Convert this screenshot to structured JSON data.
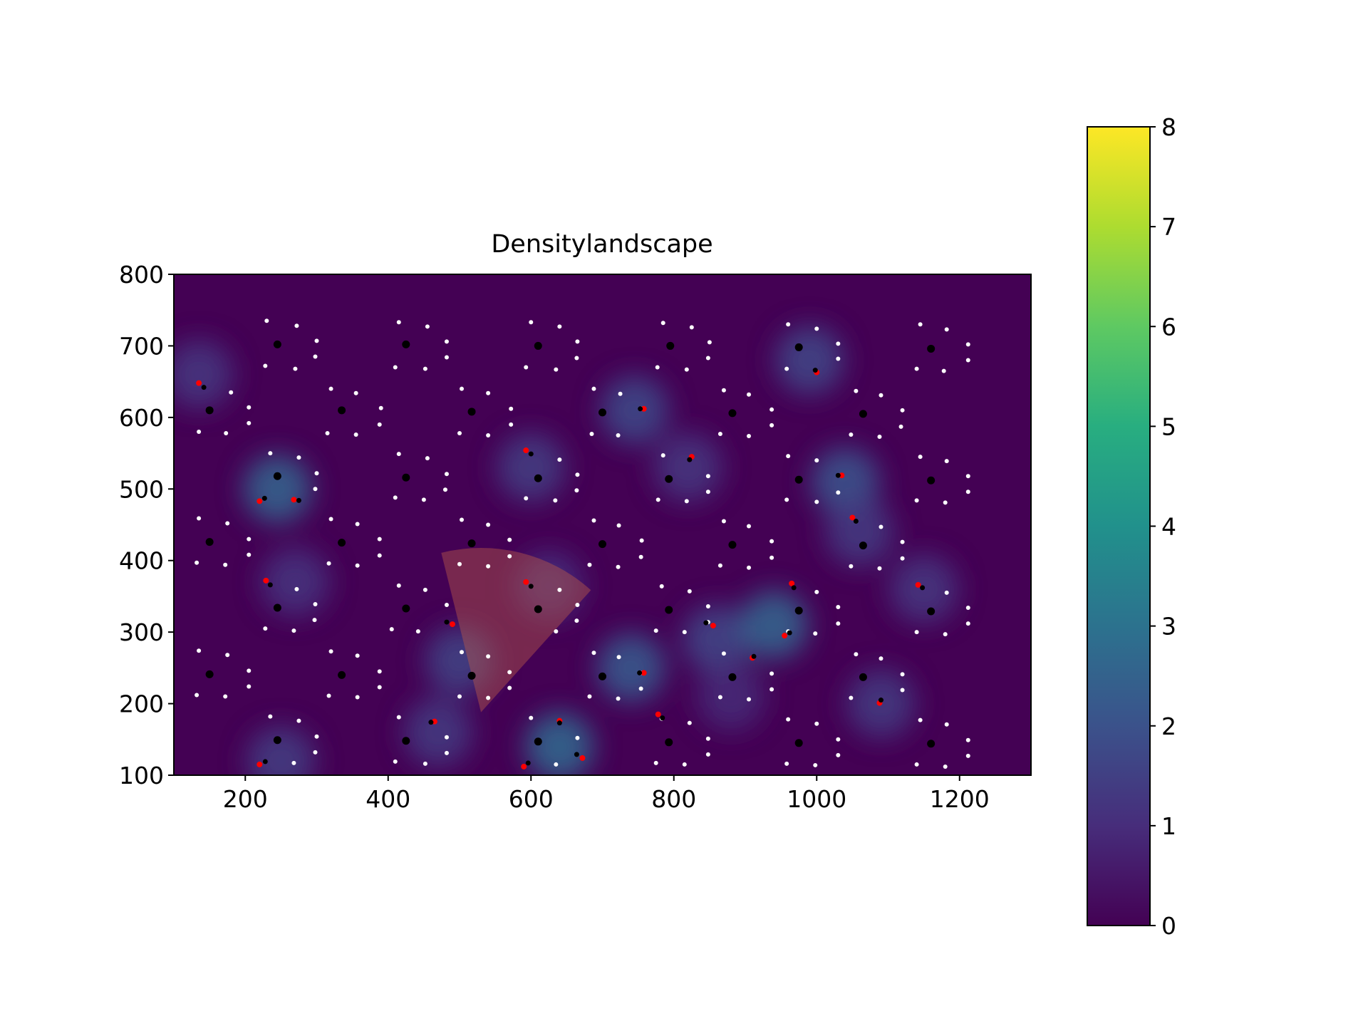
{
  "chart_data": {
    "type": "heatmap",
    "title": "Densitylandscape",
    "xlabel": "",
    "ylabel": "",
    "xlim": [
      100,
      1300
    ],
    "ylim": [
      100,
      800
    ],
    "x_ticks": [
      "200",
      "400",
      "600",
      "800",
      "1000",
      "1200"
    ],
    "y_ticks": [
      "100",
      "200",
      "300",
      "400",
      "500",
      "600",
      "700",
      "800"
    ],
    "colorbar": {
      "range": [
        0,
        8
      ],
      "ticks": [
        "0",
        "1",
        "2",
        "3",
        "4",
        "5",
        "6",
        "7",
        "8"
      ],
      "colormap": "viridis"
    },
    "grid": false,
    "density_peaks": [
      {
        "x": 135,
        "y": 660,
        "v": 1.2
      },
      {
        "x": 245,
        "y": 500,
        "v": 2.4
      },
      {
        "x": 270,
        "y": 370,
        "v": 1.1
      },
      {
        "x": 250,
        "y": 120,
        "v": 1.4
      },
      {
        "x": 470,
        "y": 160,
        "v": 1.3
      },
      {
        "x": 500,
        "y": 260,
        "v": 1.5
      },
      {
        "x": 600,
        "y": 530,
        "v": 1.4
      },
      {
        "x": 625,
        "y": 365,
        "v": 1.0
      },
      {
        "x": 640,
        "y": 140,
        "v": 2.6
      },
      {
        "x": 740,
        "y": 250,
        "v": 2.2
      },
      {
        "x": 745,
        "y": 610,
        "v": 1.7
      },
      {
        "x": 820,
        "y": 530,
        "v": 1.2
      },
      {
        "x": 860,
        "y": 290,
        "v": 1.6
      },
      {
        "x": 940,
        "y": 310,
        "v": 2.5
      },
      {
        "x": 990,
        "y": 680,
        "v": 1.6
      },
      {
        "x": 1040,
        "y": 510,
        "v": 2.0
      },
      {
        "x": 1060,
        "y": 440,
        "v": 1.3
      },
      {
        "x": 1090,
        "y": 200,
        "v": 1.3
      },
      {
        "x": 1150,
        "y": 360,
        "v": 1.2
      },
      {
        "x": 880,
        "y": 210,
        "v": 0.9
      }
    ],
    "clusters": [
      {
        "x": 150,
        "y": 610
      },
      {
        "x": 245,
        "y": 702
      },
      {
        "x": 425,
        "y": 702
      },
      {
        "x": 610,
        "y": 700
      },
      {
        "x": 795,
        "y": 700
      },
      {
        "x": 975,
        "y": 698
      },
      {
        "x": 1160,
        "y": 696
      },
      {
        "x": 335,
        "y": 610
      },
      {
        "x": 517,
        "y": 608
      },
      {
        "x": 700,
        "y": 607
      },
      {
        "x": 882,
        "y": 606
      },
      {
        "x": 1065,
        "y": 605
      },
      {
        "x": 245,
        "y": 518
      },
      {
        "x": 425,
        "y": 516
      },
      {
        "x": 610,
        "y": 515
      },
      {
        "x": 793,
        "y": 514
      },
      {
        "x": 975,
        "y": 513
      },
      {
        "x": 1160,
        "y": 512
      },
      {
        "x": 150,
        "y": 426
      },
      {
        "x": 335,
        "y": 425
      },
      {
        "x": 517,
        "y": 424
      },
      {
        "x": 700,
        "y": 423
      },
      {
        "x": 882,
        "y": 422
      },
      {
        "x": 1065,
        "y": 421
      },
      {
        "x": 245,
        "y": 334
      },
      {
        "x": 425,
        "y": 333
      },
      {
        "x": 610,
        "y": 332
      },
      {
        "x": 793,
        "y": 331
      },
      {
        "x": 975,
        "y": 330
      },
      {
        "x": 1160,
        "y": 329
      },
      {
        "x": 150,
        "y": 241
      },
      {
        "x": 335,
        "y": 240
      },
      {
        "x": 517,
        "y": 239
      },
      {
        "x": 700,
        "y": 238
      },
      {
        "x": 882,
        "y": 237
      },
      {
        "x": 1065,
        "y": 237
      },
      {
        "x": 245,
        "y": 149
      },
      {
        "x": 425,
        "y": 148
      },
      {
        "x": 610,
        "y": 147
      },
      {
        "x": 793,
        "y": 146
      },
      {
        "x": 975,
        "y": 145
      },
      {
        "x": 1160,
        "y": 144
      }
    ],
    "ring_points": [
      {
        "x": 135,
        "y": 580
      },
      {
        "x": 173,
        "y": 578
      },
      {
        "x": 205,
        "y": 592
      },
      {
        "x": 205,
        "y": 614
      },
      {
        "x": 180,
        "y": 635
      },
      {
        "x": 230,
        "y": 735
      },
      {
        "x": 272,
        "y": 728
      },
      {
        "x": 300,
        "y": 707
      },
      {
        "x": 298,
        "y": 685
      },
      {
        "x": 270,
        "y": 668
      },
      {
        "x": 228,
        "y": 672
      },
      {
        "x": 415,
        "y": 733
      },
      {
        "x": 455,
        "y": 727
      },
      {
        "x": 482,
        "y": 706
      },
      {
        "x": 482,
        "y": 684
      },
      {
        "x": 452,
        "y": 668
      },
      {
        "x": 410,
        "y": 670
      },
      {
        "x": 600,
        "y": 733
      },
      {
        "x": 640,
        "y": 727
      },
      {
        "x": 665,
        "y": 706
      },
      {
        "x": 664,
        "y": 683
      },
      {
        "x": 635,
        "y": 667
      },
      {
        "x": 593,
        "y": 670
      },
      {
        "x": 785,
        "y": 732
      },
      {
        "x": 825,
        "y": 726
      },
      {
        "x": 850,
        "y": 705
      },
      {
        "x": 848,
        "y": 683
      },
      {
        "x": 818,
        "y": 667
      },
      {
        "x": 777,
        "y": 670
      },
      {
        "x": 960,
        "y": 730
      },
      {
        "x": 1000,
        "y": 724
      },
      {
        "x": 1030,
        "y": 703
      },
      {
        "x": 1030,
        "y": 682
      },
      {
        "x": 958,
        "y": 668
      },
      {
        "x": 1145,
        "y": 730
      },
      {
        "x": 1182,
        "y": 723
      },
      {
        "x": 1212,
        "y": 702
      },
      {
        "x": 1212,
        "y": 680
      },
      {
        "x": 1178,
        "y": 665
      },
      {
        "x": 1140,
        "y": 668
      },
      {
        "x": 320,
        "y": 640
      },
      {
        "x": 355,
        "y": 634
      },
      {
        "x": 390,
        "y": 613
      },
      {
        "x": 388,
        "y": 590
      },
      {
        "x": 355,
        "y": 576
      },
      {
        "x": 315,
        "y": 578
      },
      {
        "x": 503,
        "y": 640
      },
      {
        "x": 540,
        "y": 634
      },
      {
        "x": 572,
        "y": 612
      },
      {
        "x": 572,
        "y": 590
      },
      {
        "x": 540,
        "y": 575
      },
      {
        "x": 500,
        "y": 578
      },
      {
        "x": 688,
        "y": 640
      },
      {
        "x": 725,
        "y": 633
      },
      {
        "x": 755,
        "y": 612
      },
      {
        "x": 722,
        "y": 575
      },
      {
        "x": 685,
        "y": 577
      },
      {
        "x": 870,
        "y": 638
      },
      {
        "x": 905,
        "y": 632
      },
      {
        "x": 937,
        "y": 611
      },
      {
        "x": 937,
        "y": 589
      },
      {
        "x": 905,
        "y": 574
      },
      {
        "x": 865,
        "y": 577
      },
      {
        "x": 1055,
        "y": 637
      },
      {
        "x": 1090,
        "y": 631
      },
      {
        "x": 1120,
        "y": 610
      },
      {
        "x": 1118,
        "y": 587
      },
      {
        "x": 1088,
        "y": 573
      },
      {
        "x": 1048,
        "y": 576
      },
      {
        "x": 235,
        "y": 550
      },
      {
        "x": 275,
        "y": 544
      },
      {
        "x": 300,
        "y": 522
      },
      {
        "x": 298,
        "y": 500
      },
      {
        "x": 415,
        "y": 549
      },
      {
        "x": 455,
        "y": 543
      },
      {
        "x": 482,
        "y": 521
      },
      {
        "x": 480,
        "y": 499
      },
      {
        "x": 450,
        "y": 485
      },
      {
        "x": 410,
        "y": 488
      },
      {
        "x": 640,
        "y": 541
      },
      {
        "x": 665,
        "y": 520
      },
      {
        "x": 664,
        "y": 498
      },
      {
        "x": 634,
        "y": 484
      },
      {
        "x": 593,
        "y": 487
      },
      {
        "x": 785,
        "y": 547
      },
      {
        "x": 848,
        "y": 518
      },
      {
        "x": 848,
        "y": 496
      },
      {
        "x": 818,
        "y": 483
      },
      {
        "x": 778,
        "y": 485
      },
      {
        "x": 960,
        "y": 546
      },
      {
        "x": 1000,
        "y": 540
      },
      {
        "x": 1030,
        "y": 495
      },
      {
        "x": 1000,
        "y": 482
      },
      {
        "x": 958,
        "y": 485
      },
      {
        "x": 1145,
        "y": 545
      },
      {
        "x": 1182,
        "y": 539
      },
      {
        "x": 1212,
        "y": 518
      },
      {
        "x": 1212,
        "y": 496
      },
      {
        "x": 1180,
        "y": 481
      },
      {
        "x": 1140,
        "y": 484
      },
      {
        "x": 135,
        "y": 459
      },
      {
        "x": 175,
        "y": 452
      },
      {
        "x": 205,
        "y": 430
      },
      {
        "x": 205,
        "y": 408
      },
      {
        "x": 172,
        "y": 394
      },
      {
        "x": 132,
        "y": 397
      },
      {
        "x": 320,
        "y": 458
      },
      {
        "x": 357,
        "y": 451
      },
      {
        "x": 388,
        "y": 430
      },
      {
        "x": 388,
        "y": 407
      },
      {
        "x": 357,
        "y": 393
      },
      {
        "x": 317,
        "y": 396
      },
      {
        "x": 503,
        "y": 457
      },
      {
        "x": 540,
        "y": 450
      },
      {
        "x": 570,
        "y": 429
      },
      {
        "x": 570,
        "y": 406
      },
      {
        "x": 540,
        "y": 392
      },
      {
        "x": 500,
        "y": 395
      },
      {
        "x": 688,
        "y": 456
      },
      {
        "x": 723,
        "y": 449
      },
      {
        "x": 755,
        "y": 428
      },
      {
        "x": 754,
        "y": 405
      },
      {
        "x": 722,
        "y": 391
      },
      {
        "x": 682,
        "y": 394
      },
      {
        "x": 870,
        "y": 455
      },
      {
        "x": 905,
        "y": 448
      },
      {
        "x": 937,
        "y": 427
      },
      {
        "x": 937,
        "y": 404
      },
      {
        "x": 905,
        "y": 390
      },
      {
        "x": 865,
        "y": 393
      },
      {
        "x": 1090,
        "y": 447
      },
      {
        "x": 1120,
        "y": 426
      },
      {
        "x": 1120,
        "y": 403
      },
      {
        "x": 1088,
        "y": 389
      },
      {
        "x": 1048,
        "y": 392
      },
      {
        "x": 272,
        "y": 360
      },
      {
        "x": 298,
        "y": 339
      },
      {
        "x": 297,
        "y": 317
      },
      {
        "x": 268,
        "y": 302
      },
      {
        "x": 228,
        "y": 305
      },
      {
        "x": 415,
        "y": 365
      },
      {
        "x": 452,
        "y": 359
      },
      {
        "x": 482,
        "y": 338
      },
      {
        "x": 442,
        "y": 301
      },
      {
        "x": 405,
        "y": 304
      },
      {
        "x": 640,
        "y": 359
      },
      {
        "x": 665,
        "y": 338
      },
      {
        "x": 664,
        "y": 316
      },
      {
        "x": 635,
        "y": 301
      },
      {
        "x": 783,
        "y": 364
      },
      {
        "x": 822,
        "y": 357
      },
      {
        "x": 848,
        "y": 336
      },
      {
        "x": 848,
        "y": 314
      },
      {
        "x": 815,
        "y": 300
      },
      {
        "x": 775,
        "y": 302
      },
      {
        "x": 1000,
        "y": 356
      },
      {
        "x": 1030,
        "y": 335
      },
      {
        "x": 1030,
        "y": 312
      },
      {
        "x": 998,
        "y": 298
      },
      {
        "x": 960,
        "y": 301
      },
      {
        "x": 1182,
        "y": 355
      },
      {
        "x": 1212,
        "y": 334
      },
      {
        "x": 1212,
        "y": 312
      },
      {
        "x": 1180,
        "y": 297
      },
      {
        "x": 1140,
        "y": 300
      },
      {
        "x": 135,
        "y": 274
      },
      {
        "x": 175,
        "y": 268
      },
      {
        "x": 205,
        "y": 246
      },
      {
        "x": 205,
        "y": 224
      },
      {
        "x": 172,
        "y": 210
      },
      {
        "x": 132,
        "y": 212
      },
      {
        "x": 320,
        "y": 273
      },
      {
        "x": 357,
        "y": 267
      },
      {
        "x": 388,
        "y": 245
      },
      {
        "x": 388,
        "y": 223
      },
      {
        "x": 357,
        "y": 209
      },
      {
        "x": 317,
        "y": 211
      },
      {
        "x": 503,
        "y": 272
      },
      {
        "x": 540,
        "y": 266
      },
      {
        "x": 570,
        "y": 244
      },
      {
        "x": 570,
        "y": 222
      },
      {
        "x": 540,
        "y": 208
      },
      {
        "x": 500,
        "y": 210
      },
      {
        "x": 688,
        "y": 271
      },
      {
        "x": 723,
        "y": 265
      },
      {
        "x": 754,
        "y": 243
      },
      {
        "x": 754,
        "y": 221
      },
      {
        "x": 722,
        "y": 207
      },
      {
        "x": 682,
        "y": 210
      },
      {
        "x": 870,
        "y": 270
      },
      {
        "x": 937,
        "y": 242
      },
      {
        "x": 937,
        "y": 220
      },
      {
        "x": 905,
        "y": 206
      },
      {
        "x": 865,
        "y": 209
      },
      {
        "x": 1055,
        "y": 269
      },
      {
        "x": 1090,
        "y": 263
      },
      {
        "x": 1120,
        "y": 241
      },
      {
        "x": 1120,
        "y": 219
      },
      {
        "x": 1048,
        "y": 208
      },
      {
        "x": 235,
        "y": 182
      },
      {
        "x": 275,
        "y": 176
      },
      {
        "x": 300,
        "y": 154
      },
      {
        "x": 298,
        "y": 132
      },
      {
        "x": 268,
        "y": 117
      },
      {
        "x": 415,
        "y": 181
      },
      {
        "x": 482,
        "y": 153
      },
      {
        "x": 482,
        "y": 131
      },
      {
        "x": 452,
        "y": 116
      },
      {
        "x": 410,
        "y": 119
      },
      {
        "x": 600,
        "y": 180
      },
      {
        "x": 665,
        "y": 152
      },
      {
        "x": 635,
        "y": 115
      },
      {
        "x": 783,
        "y": 179
      },
      {
        "x": 822,
        "y": 173
      },
      {
        "x": 848,
        "y": 151
      },
      {
        "x": 848,
        "y": 129
      },
      {
        "x": 815,
        "y": 115
      },
      {
        "x": 775,
        "y": 117
      },
      {
        "x": 960,
        "y": 178
      },
      {
        "x": 1000,
        "y": 172
      },
      {
        "x": 1030,
        "y": 150
      },
      {
        "x": 1030,
        "y": 128
      },
      {
        "x": 998,
        "y": 114
      },
      {
        "x": 958,
        "y": 116
      },
      {
        "x": 1145,
        "y": 177
      },
      {
        "x": 1182,
        "y": 171
      },
      {
        "x": 1212,
        "y": 149
      },
      {
        "x": 1212,
        "y": 127
      },
      {
        "x": 1180,
        "y": 112
      },
      {
        "x": 1140,
        "y": 115
      }
    ],
    "agents": [
      {
        "x": 135,
        "y": 648,
        "hx": 142,
        "hy": 642
      },
      {
        "x": 220,
        "y": 483,
        "hx": 227,
        "hy": 487
      },
      {
        "x": 268,
        "y": 485,
        "hx": 275,
        "hy": 484
      },
      {
        "x": 229,
        "y": 372,
        "hx": 235,
        "hy": 366
      },
      {
        "x": 220,
        "y": 115,
        "hx": 228,
        "hy": 119
      },
      {
        "x": 465,
        "y": 175,
        "hx": 460,
        "hy": 174
      },
      {
        "x": 490,
        "y": 311,
        "hx": 482,
        "hy": 314
      },
      {
        "x": 593,
        "y": 554,
        "hx": 600,
        "hy": 549
      },
      {
        "x": 593,
        "y": 370,
        "hx": 600,
        "hy": 364
      },
      {
        "x": 590,
        "y": 112,
        "hx": 596,
        "hy": 117
      },
      {
        "x": 640,
        "y": 176,
        "hx": 640,
        "hy": 173
      },
      {
        "x": 672,
        "y": 124,
        "hx": 664,
        "hy": 129
      },
      {
        "x": 758,
        "y": 612,
        "hx": 753,
        "hy": 612
      },
      {
        "x": 758,
        "y": 243,
        "hx": 752,
        "hy": 243
      },
      {
        "x": 778,
        "y": 185,
        "hx": 784,
        "hy": 180
      },
      {
        "x": 825,
        "y": 545,
        "hx": 822,
        "hy": 541
      },
      {
        "x": 855,
        "y": 309,
        "hx": 845,
        "hy": 313
      },
      {
        "x": 910,
        "y": 264,
        "hx": 912,
        "hy": 266
      },
      {
        "x": 955,
        "y": 295,
        "hx": 962,
        "hy": 299
      },
      {
        "x": 965,
        "y": 368,
        "hx": 968,
        "hy": 362
      },
      {
        "x": 1000,
        "y": 663,
        "hx": 998,
        "hy": 666
      },
      {
        "x": 1035,
        "y": 519,
        "hx": 1030,
        "hy": 519
      },
      {
        "x": 1050,
        "y": 460,
        "hx": 1055,
        "hy": 455
      },
      {
        "x": 1088,
        "y": 201,
        "hx": 1090,
        "hy": 205
      },
      {
        "x": 1142,
        "y": 366,
        "hx": 1148,
        "hy": 362
      }
    ],
    "vision_cone": {
      "apex_x": 530,
      "apex_y": 188,
      "radius": 230,
      "from_deg": 48,
      "to_deg": 104
    }
  },
  "colors": {
    "background": "#440154",
    "ring_points": "#ffffff",
    "clusters": "#000000",
    "agents": "#ff0000",
    "cone": "#b8594a"
  }
}
